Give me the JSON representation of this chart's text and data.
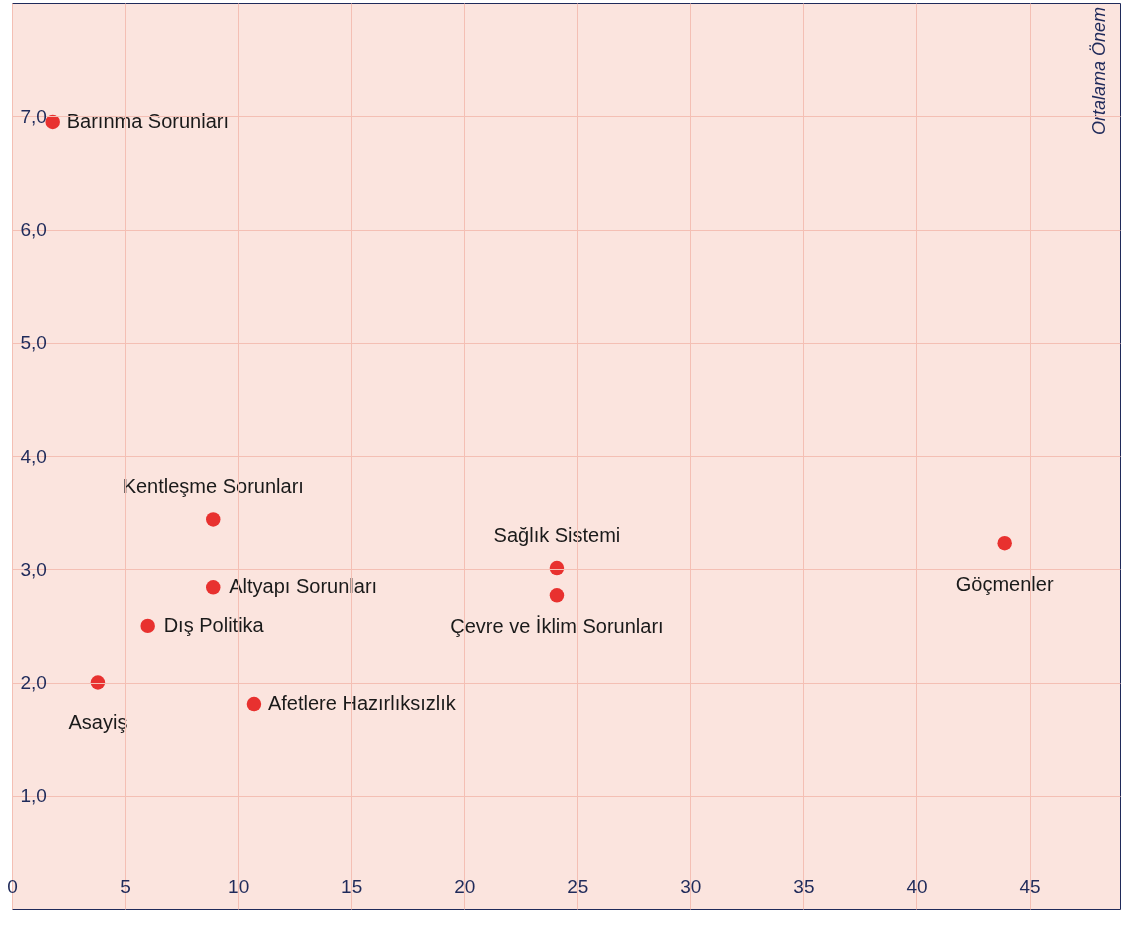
{
  "chart_data": {
    "type": "scatter",
    "ylabel": "Ortalama Önem",
    "x": [
      1.8,
      8.9,
      8.9,
      6.0,
      3.8,
      10.7,
      24.1,
      24.1,
      43.9
    ],
    "series": [
      {
        "color": "#e8312f",
        "values": [
          6.95,
          3.44,
          2.84,
          2.5,
          2.0,
          1.81,
          3.01,
          2.77,
          3.23
        ]
      }
    ],
    "annotations": [
      {
        "text": "Barınma Sorunları",
        "x": 1.8,
        "y": 6.95
      },
      {
        "text": "Kentleşme Sorunları",
        "x": 8.9,
        "y": 3.44
      },
      {
        "text": "Altyapı Sorunları",
        "x": 8.9,
        "y": 2.84
      },
      {
        "text": "Dış Politika",
        "x": 6.0,
        "y": 2.5
      },
      {
        "text": "Asayiş",
        "x": 3.8,
        "y": 2.0
      },
      {
        "text": "Afetlere Hazırlıksızlık",
        "x": 10.7,
        "y": 1.81
      },
      {
        "text": "Sağlık Sistemi",
        "x": 24.1,
        "y": 3.01
      },
      {
        "text": "Çevre ve İklim Sorunları",
        "x": 24.1,
        "y": 2.77
      },
      {
        "text": "Göçmenler",
        "x": 43.9,
        "y": 3.23
      }
    ],
    "xlim": [
      0,
      49
    ],
    "ylim": [
      0,
      8
    ],
    "xticks": [
      0,
      5,
      10,
      15,
      20,
      25,
      30,
      35,
      40,
      45
    ],
    "yticks": [
      {
        "value": 1,
        "label": "1,0"
      },
      {
        "value": 2,
        "label": "2,0"
      },
      {
        "value": 3,
        "label": "3,0"
      },
      {
        "value": 4,
        "label": "4,0"
      },
      {
        "value": 5,
        "label": "5,0"
      },
      {
        "value": 6,
        "label": "6,0"
      },
      {
        "value": 7,
        "label": "7,0"
      }
    ],
    "grid": true,
    "marker": "circle"
  }
}
